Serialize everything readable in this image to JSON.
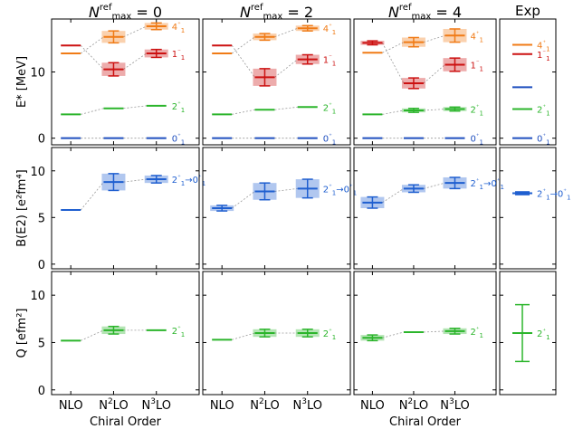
{
  "columns": [
    {
      "title_main": "N",
      "title_sup": "ref",
      "title_sub": "max",
      "title_value": "= 0"
    },
    {
      "title_main": "N",
      "title_sup": "ref",
      "title_sub": "max",
      "title_value": "= 2"
    },
    {
      "title_main": "N",
      "title_sup": "ref",
      "title_sub": "max",
      "title_value": "= 4"
    },
    {
      "title_main": "Exp"
    }
  ],
  "rows": [
    {
      "ylabel": "E* [MeV]",
      "yticks": [
        0,
        10
      ],
      "ylim": [
        -1,
        18
      ]
    },
    {
      "ylabel": "B(E2) [e²fm⁴]",
      "yticks": [
        0,
        5,
        10
      ],
      "ylim": [
        -0.5,
        12.5
      ]
    },
    {
      "ylabel": "Q [efm²]",
      "yticks": [
        0,
        5,
        10
      ],
      "ylim": [
        -0.5,
        12.5
      ]
    }
  ],
  "x_tick_labels": [
    "NLO",
    "N²LO",
    "N³LO"
  ],
  "xlabel": "Chiral Order",
  "colors": {
    "zero": "#1f4fbf",
    "two": "#2bb52b",
    "one": "#cc1111",
    "four": "#f07b16",
    "be2": "#1f5fd0",
    "q": "#2bb52b"
  },
  "chart_data": [
    {
      "type": "scatter",
      "title": "N^ref_max = 0",
      "ylabel": "E* [MeV]",
      "ylim": [
        -1,
        18
      ],
      "categories": [
        "NLO",
        "N²LO",
        "N³LO"
      ],
      "series": [
        {
          "name": "0₁⁺",
          "color": "#1f4fbf",
          "values": [
            0,
            0,
            0
          ],
          "err": [
            0,
            0,
            0
          ]
        },
        {
          "name": "2₁⁺",
          "color": "#2bb52b",
          "values": [
            3.6,
            4.5,
            4.9
          ],
          "err": [
            0.1,
            0.15,
            0.15
          ]
        },
        {
          "name": "1₁⁻",
          "color": "#cc1111",
          "values": [
            14.0,
            10.4,
            12.8
          ],
          "err": [
            0.1,
            1.0,
            0.6
          ]
        },
        {
          "name": "4₁⁺",
          "color": "#f07b16",
          "values": [
            12.8,
            15.3,
            16.9
          ],
          "err": [
            0.1,
            0.9,
            0.5
          ]
        }
      ]
    },
    {
      "type": "scatter",
      "title": "N^ref_max = 2",
      "ylabel": "E* [MeV]",
      "ylim": [
        -1,
        18
      ],
      "categories": [
        "NLO",
        "N²LO",
        "N³LO"
      ],
      "series": [
        {
          "name": "0₁⁺",
          "color": "#1f4fbf",
          "values": [
            0,
            0,
            0
          ],
          "err": [
            0,
            0,
            0
          ]
        },
        {
          "name": "2₁⁺",
          "color": "#2bb52b",
          "values": [
            3.6,
            4.3,
            4.7
          ],
          "err": [
            0.1,
            0.15,
            0.15
          ]
        },
        {
          "name": "1₁⁻",
          "color": "#cc1111",
          "values": [
            14.0,
            9.2,
            11.9
          ],
          "err": [
            0.1,
            1.3,
            0.7
          ]
        },
        {
          "name": "4₁⁺",
          "color": "#f07b16",
          "values": [
            12.8,
            15.3,
            16.6
          ],
          "err": [
            0.1,
            0.5,
            0.4
          ]
        }
      ]
    },
    {
      "type": "scatter",
      "title": "N^ref_max = 4",
      "ylabel": "E* [MeV]",
      "ylim": [
        -1,
        18
      ],
      "categories": [
        "NLO",
        "N²LO",
        "N³LO"
      ],
      "series": [
        {
          "name": "0₁⁺",
          "color": "#1f4fbf",
          "values": [
            0,
            0,
            0
          ],
          "err": [
            0,
            0,
            0
          ]
        },
        {
          "name": "2₁⁺",
          "color": "#2bb52b",
          "values": [
            3.6,
            4.2,
            4.4
          ],
          "err": [
            0.1,
            0.3,
            0.3
          ]
        },
        {
          "name": "1₁⁻",
          "color": "#cc1111",
          "values": [
            14.4,
            8.3,
            11.1
          ],
          "err": [
            0.3,
            0.8,
            1.0
          ]
        },
        {
          "name": "4₁⁺",
          "color": "#f07b16",
          "values": [
            12.9,
            14.5,
            15.5
          ],
          "err": [
            0.1,
            0.7,
            1.0
          ]
        }
      ]
    },
    {
      "type": "scatter",
      "title": "Exp",
      "ylabel": "E* [MeV]",
      "ylim": [
        -1,
        18
      ],
      "series": [
        {
          "name": "0₁⁺",
          "color": "#1f4fbf",
          "values": [
            0
          ],
          "err": [
            0
          ]
        },
        {
          "name": "2₁⁺",
          "color": "#2bb52b",
          "values": [
            4.4
          ],
          "err": [
            0
          ]
        },
        {
          "name": "",
          "color": "#1f4fbf",
          "values": [
            7.7
          ],
          "err": [
            0
          ]
        },
        {
          "name": "1₁⁻",
          "color": "#cc1111",
          "values": [
            12.7
          ],
          "err": [
            0
          ]
        },
        {
          "name": "4₁⁺",
          "color": "#f07b16",
          "values": [
            14.1
          ],
          "err": [
            0
          ]
        }
      ]
    },
    {
      "type": "scatter",
      "title": "N^ref_max = 0",
      "ylabel": "B(E2) [e²fm⁴]",
      "ylim": [
        -0.5,
        12.5
      ],
      "categories": [
        "NLO",
        "N²LO",
        "N³LO"
      ],
      "series": [
        {
          "name": "2₁⁺→0₁⁺",
          "color": "#1f5fd0",
          "values": [
            5.8,
            8.8,
            9.1
          ],
          "err": [
            0.1,
            0.9,
            0.4
          ]
        }
      ]
    },
    {
      "type": "scatter",
      "title": "N^ref_max = 2",
      "ylabel": "B(E2) [e²fm⁴]",
      "ylim": [
        -0.5,
        12.5
      ],
      "categories": [
        "NLO",
        "N²LO",
        "N³LO"
      ],
      "series": [
        {
          "name": "2₁⁺→0₁⁺",
          "color": "#1f5fd0",
          "values": [
            6.0,
            7.8,
            8.1
          ],
          "err": [
            0.3,
            0.9,
            1.0
          ]
        }
      ]
    },
    {
      "type": "scatter",
      "title": "N^ref_max = 4",
      "ylabel": "B(E2) [e²fm⁴]",
      "ylim": [
        -0.5,
        12.5
      ],
      "categories": [
        "NLO",
        "N²LO",
        "N³LO"
      ],
      "series": [
        {
          "name": "2₁⁺→0₁⁺",
          "color": "#1f5fd0",
          "values": [
            6.6,
            8.1,
            8.7
          ],
          "err": [
            0.6,
            0.4,
            0.6
          ]
        }
      ]
    },
    {
      "type": "scatter",
      "title": "Exp",
      "ylabel": "B(E2) [e²fm⁴]",
      "ylim": [
        -0.5,
        12.5
      ],
      "series": [
        {
          "name": "2₁⁺→0₁⁺",
          "color": "#1f5fd0",
          "values": [
            7.6
          ],
          "err": [
            0.15
          ]
        }
      ]
    },
    {
      "type": "scatter",
      "title": "N^ref_max = 0",
      "ylabel": "Q [efm²]",
      "ylim": [
        -0.5,
        12.5
      ],
      "categories": [
        "NLO",
        "N²LO",
        "N³LO"
      ],
      "series": [
        {
          "name": "2₁⁺",
          "color": "#2bb52b",
          "values": [
            5.2,
            6.3,
            6.3
          ],
          "err": [
            0.05,
            0.4,
            0.05
          ]
        }
      ]
    },
    {
      "type": "scatter",
      "title": "N^ref_max = 2",
      "ylabel": "Q [efm²]",
      "ylim": [
        -0.5,
        12.5
      ],
      "categories": [
        "NLO",
        "N²LO",
        "N³LO"
      ],
      "series": [
        {
          "name": "2₁⁺",
          "color": "#2bb52b",
          "values": [
            5.3,
            6.0,
            6.0
          ],
          "err": [
            0.1,
            0.4,
            0.4
          ]
        }
      ]
    },
    {
      "type": "scatter",
      "title": "N^ref_max = 4",
      "ylabel": "Q [efm²]",
      "ylim": [
        -0.5,
        12.5
      ],
      "categories": [
        "NLO",
        "N²LO",
        "N³LO"
      ],
      "series": [
        {
          "name": "2₁⁺",
          "color": "#2bb52b",
          "values": [
            5.5,
            6.1,
            6.2
          ],
          "err": [
            0.3,
            0.1,
            0.3
          ]
        }
      ]
    },
    {
      "type": "scatter",
      "title": "Exp",
      "ylabel": "Q [efm²]",
      "ylim": [
        -0.5,
        12.5
      ],
      "series": [
        {
          "name": "2₁⁺",
          "color": "#2bb52b",
          "values": [
            6.0
          ],
          "err": [
            3.0
          ]
        }
      ]
    }
  ]
}
